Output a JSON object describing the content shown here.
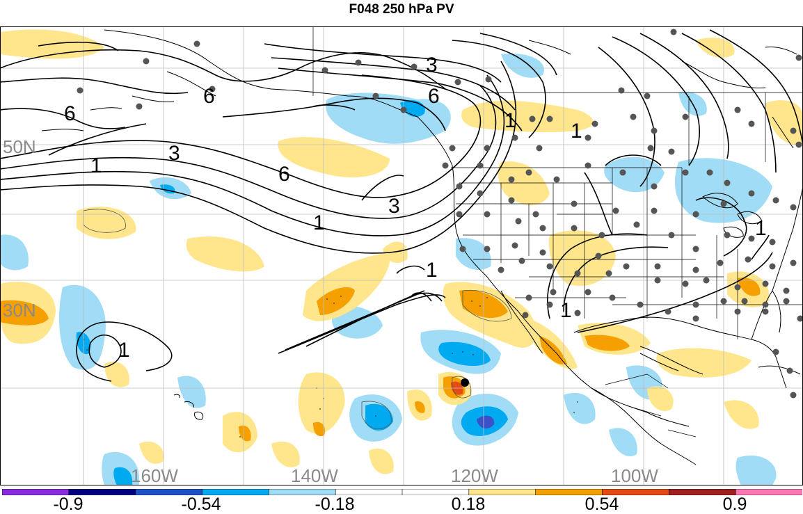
{
  "title": "F048 250 hPa PV",
  "map": {
    "lat_labels": [
      "50N",
      "30N"
    ],
    "lon_labels": [
      "160W",
      "140W",
      "120W",
      "100W"
    ],
    "contour_labels": [
      "6",
      "6",
      "6",
      "6",
      "3",
      "3",
      "3",
      "1",
      "1",
      "1",
      "1",
      "1",
      "1",
      "1",
      "1"
    ]
  },
  "colorbar": {
    "ticks": [
      "-0.9",
      "-0.54",
      "-0.18",
      "0.18",
      "0.54",
      "0.9"
    ],
    "colors": [
      "#8a2be2",
      "#000080",
      "#1e50c8",
      "#00aaf0",
      "#a0dcf6",
      "#ffffff",
      "#ffffff",
      "#ffe68c",
      "#f5a000",
      "#e64b14",
      "#a01e1e",
      "#ff78b4"
    ]
  }
}
